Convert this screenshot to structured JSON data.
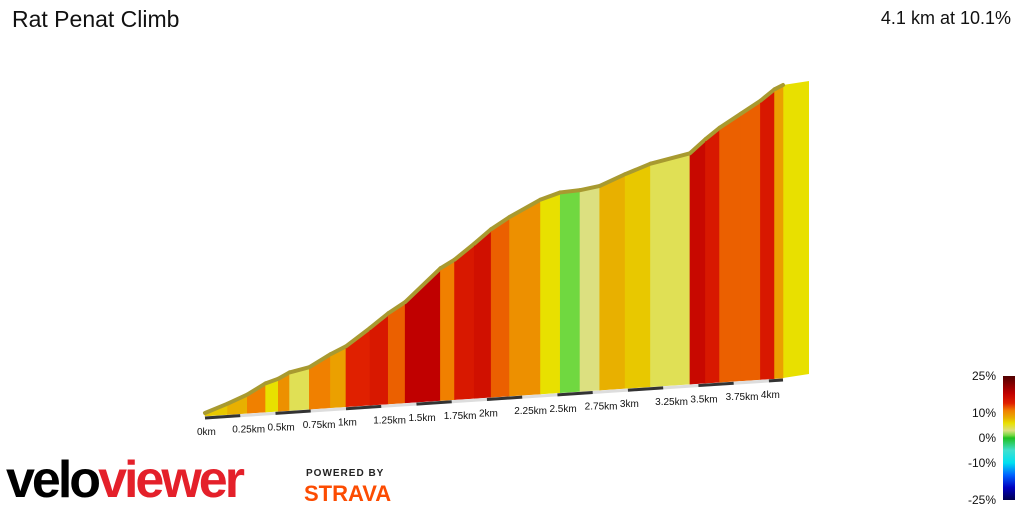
{
  "header": {
    "title": "Rat Penat Climb",
    "summary": "4.1 km at 10.1%"
  },
  "branding": {
    "logo_part1": "velo",
    "logo_part2": "viewer",
    "powered_by": "POWERED BY",
    "strava": "STRAVA",
    "strava_color": "#fc4c02",
    "logo_red": "#e4202a"
  },
  "chart_data": {
    "type": "area",
    "title": "",
    "xlabel": "",
    "ylabel": "",
    "x_ticks": [
      "0km",
      "0.25km",
      "0.5km",
      "0.75km",
      "1km",
      "1.25km",
      "1.5km",
      "1.75km",
      "2km",
      "2.25km",
      "2.5km",
      "2.75km",
      "3km",
      "3.25km",
      "3.5km",
      "3.75km",
      "4km"
    ],
    "x_tick_values": [
      0,
      0.25,
      0.5,
      0.75,
      1,
      1.25,
      1.5,
      1.75,
      2,
      2.25,
      2.5,
      2.75,
      3,
      3.25,
      3.5,
      3.75,
      4
    ],
    "xlim": [
      0,
      4.1
    ],
    "segments": [
      {
        "from": 0,
        "to": 0.16,
        "gradient": 7
      },
      {
        "from": 0.16,
        "to": 0.3,
        "gradient": 8
      },
      {
        "from": 0.3,
        "to": 0.43,
        "gradient": 11
      },
      {
        "from": 0.43,
        "to": 0.52,
        "gradient": 6
      },
      {
        "from": 0.52,
        "to": 0.6,
        "gradient": 10
      },
      {
        "from": 0.6,
        "to": 0.74,
        "gradient": 4
      },
      {
        "from": 0.74,
        "to": 0.89,
        "gradient": 11
      },
      {
        "from": 0.89,
        "to": 1.0,
        "gradient": 9
      },
      {
        "from": 1.0,
        "to": 1.17,
        "gradient": 14
      },
      {
        "from": 1.17,
        "to": 1.3,
        "gradient": 15
      },
      {
        "from": 1.3,
        "to": 1.42,
        "gradient": 12
      },
      {
        "from": 1.42,
        "to": 1.67,
        "gradient": 18
      },
      {
        "from": 1.67,
        "to": 1.77,
        "gradient": 11
      },
      {
        "from": 1.77,
        "to": 1.91,
        "gradient": 15
      },
      {
        "from": 1.91,
        "to": 2.03,
        "gradient": 16
      },
      {
        "from": 2.03,
        "to": 2.16,
        "gradient": 12
      },
      {
        "from": 2.16,
        "to": 2.38,
        "gradient": 10
      },
      {
        "from": 2.38,
        "to": 2.52,
        "gradient": 6
      },
      {
        "from": 2.52,
        "to": 2.66,
        "gradient": 1
      },
      {
        "from": 2.66,
        "to": 2.8,
        "gradient": 3
      },
      {
        "from": 2.8,
        "to": 2.98,
        "gradient": 8
      },
      {
        "from": 2.98,
        "to": 3.16,
        "gradient": 7
      },
      {
        "from": 3.16,
        "to": 3.44,
        "gradient": 4
      },
      {
        "from": 3.44,
        "to": 3.55,
        "gradient": 17
      },
      {
        "from": 3.55,
        "to": 3.65,
        "gradient": 15
      },
      {
        "from": 3.65,
        "to": 3.8,
        "gradient": 12
      },
      {
        "from": 3.8,
        "to": 3.94,
        "gradient": 12
      },
      {
        "from": 3.94,
        "to": 4.04,
        "gradient": 15
      },
      {
        "from": 4.04,
        "to": 4.1,
        "gradient": 9
      }
    ],
    "legend": {
      "labels": [
        "25%",
        "10%",
        "0%",
        "-10%",
        "-25%"
      ],
      "values": [
        25,
        10,
        0,
        -10,
        -25
      ],
      "color_stops": [
        {
          "g": 25,
          "c": "#500000"
        },
        {
          "g": 18,
          "c": "#c00000"
        },
        {
          "g": 14,
          "c": "#e02000"
        },
        {
          "g": 11,
          "c": "#f08000"
        },
        {
          "g": 8,
          "c": "#e8b000"
        },
        {
          "g": 6,
          "c": "#e8e000"
        },
        {
          "g": 3,
          "c": "#dce080"
        },
        {
          "g": 1,
          "c": "#70d840"
        },
        {
          "g": 0,
          "c": "#20c020"
        },
        {
          "g": -5,
          "c": "#40e0d0"
        },
        {
          "g": -10,
          "c": "#00e0f0"
        },
        {
          "g": -15,
          "c": "#0060ff"
        },
        {
          "g": -20,
          "c": "#0000c0"
        },
        {
          "g": -25,
          "c": "#000050"
        }
      ],
      "placement": "bottom-right"
    }
  }
}
